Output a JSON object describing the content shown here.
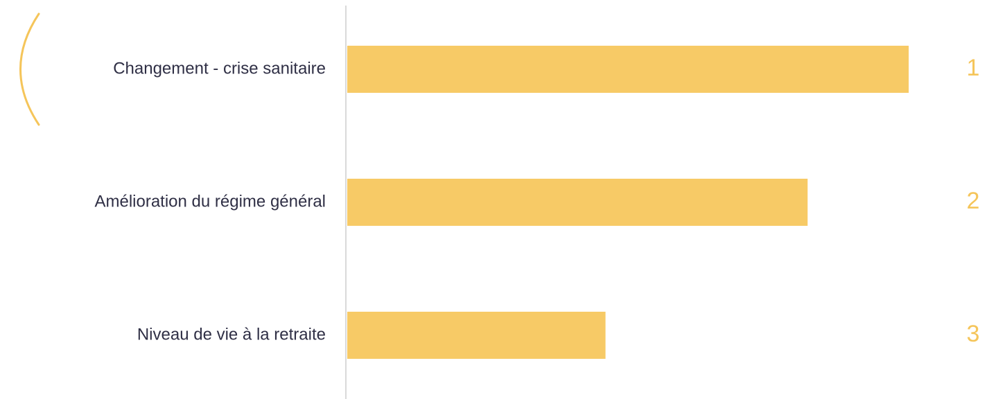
{
  "chart_data": {
    "type": "bar",
    "orientation": "horizontal",
    "categories": [
      "Changement - crise sanitaire",
      "Amélioration du régime général",
      "Niveau de vie à la retraite"
    ],
    "values": [
      100,
      82,
      46
    ],
    "ranks": [
      "1",
      "2",
      "3"
    ],
    "xlim": [
      0,
      100
    ],
    "grid": false,
    "title": "",
    "xlabel": "",
    "ylabel": ""
  },
  "colors": {
    "bar": "#f7ca66",
    "rank": "#f5c55a",
    "bracket": "#f5c55a",
    "axis": "#d9d9d9",
    "label": "#2f2f45"
  }
}
